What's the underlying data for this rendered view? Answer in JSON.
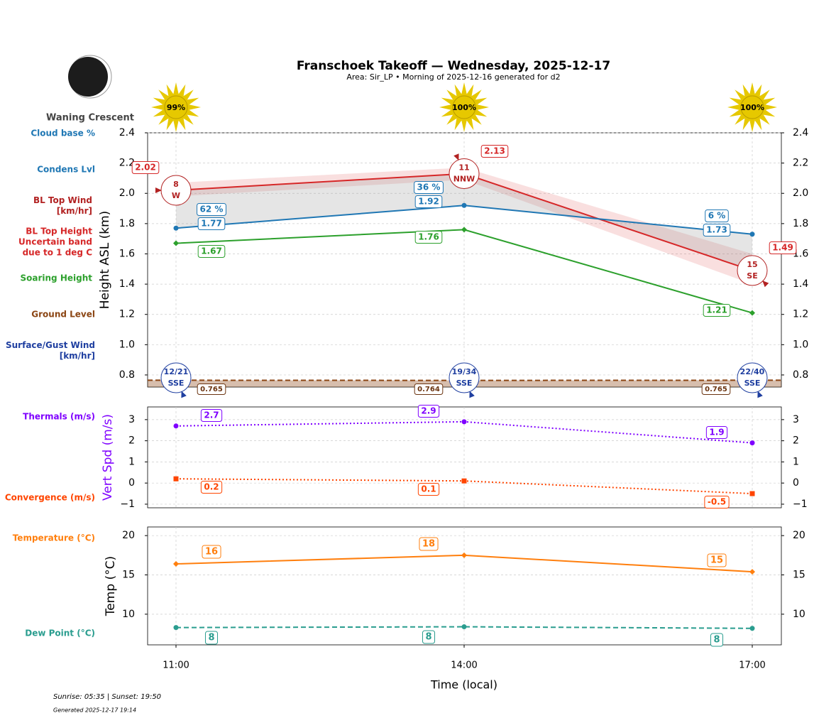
{
  "title": "Franschoek Takeoff — Wednesday, 2025-12-17",
  "subtitle": "Area: Sir_LP • Morning of 2025-12-16 generated for d2",
  "moon_phase": "Waning Crescent",
  "sunshine": {
    "values": [
      99,
      100,
      100
    ],
    "value_labels": [
      "99%",
      "100%",
      "100%"
    ],
    "color": "#e6c800"
  },
  "footer": {
    "sun_times": "Sunrise: 05:35 | Sunset: 19:50",
    "generated": "Generated 2025-12-17 19:14"
  },
  "chart_data": [
    {
      "type": "line",
      "ylabel": "Height ASL (km)",
      "ylim": [
        0.72,
        2.4
      ],
      "yticks": [
        0.8,
        {
          "value": 1,
          "label": "1.0"
        },
        1.2,
        1.4,
        1.6,
        1.8,
        {
          "value": 2,
          "label": "2.0"
        },
        2.2,
        2.4
      ],
      "grid": true,
      "series": [
        {
          "name": "BL Top Height\nUncertain band\ndue to 1 deg C",
          "color": "#d62728",
          "values": [
            2.02,
            2.13,
            1.49
          ],
          "band_low": [
            1.98,
            2.09,
            1.4
          ],
          "band_high": [
            2.07,
            2.17,
            1.6
          ],
          "linestyle": "solid"
        },
        {
          "name": "Condens Lvl",
          "color": "#1f77b4",
          "values": [
            1.77,
            1.92,
            1.73
          ],
          "marker": "circle",
          "linestyle": "solid"
        },
        {
          "name": "Soaring Height",
          "color": "#2ca02c",
          "values": [
            1.67,
            1.76,
            1.21
          ],
          "marker": "diamond",
          "linestyle": "solid"
        },
        {
          "name": "Ground Level",
          "color": "#8b4513",
          "values": [
            0.765,
            0.764,
            0.765
          ],
          "linestyle": "dashed",
          "fill": true
        }
      ],
      "cloud_base": {
        "name": "Cloud base %",
        "color": "#1f77b4",
        "values": [
          62,
          36,
          6
        ],
        "value_labels": [
          "62 %",
          "36 %",
          "6 %"
        ]
      },
      "bl_top_wind": {
        "name": "BL Top Wind\n[km/hr]",
        "color": "#b22222",
        "values": [
          8,
          11,
          15
        ],
        "directions": [
          "W",
          "NNW",
          "SE"
        ]
      },
      "surface_wind": {
        "name": "Surface/Gust Wind\n[km/hr]",
        "color": "#1f3fa0",
        "labels": [
          "12/21",
          "19/34",
          "22/40"
        ],
        "directions": [
          "SSE",
          "SSE",
          "SSE"
        ]
      }
    },
    {
      "type": "line",
      "ylabel": "Vert Spd (m/s)",
      "ylabel_color": "#7f00ff",
      "ylim": [
        -1.17,
        3.6
      ],
      "yticks": [
        {
          "value": -1,
          "label": "−1"
        },
        0,
        1,
        2,
        3
      ],
      "grid": true,
      "series": [
        {
          "name": "Thermals (m/s)",
          "color": "#7f00ff",
          "values": [
            2.7,
            2.9,
            1.9
          ],
          "marker": "circle",
          "linestyle": "dotted"
        },
        {
          "name": "Convergence (m/s)",
          "color": "#ff4500",
          "values": [
            0.2,
            0.1,
            -0.5
          ],
          "marker": "square",
          "linestyle": "dotted"
        }
      ]
    },
    {
      "type": "line",
      "ylabel": "Temp (°C)",
      "xlabel": "Time (local)",
      "categories": [
        "11:00",
        "14:00",
        "17:00"
      ],
      "ylim": [
        6.1,
        21.1
      ],
      "yticks": [
        10,
        15,
        20
      ],
      "grid": true,
      "series": [
        {
          "name": "Temperature (°C)",
          "color": "#ff7f0e",
          "values": [
            16.4,
            17.5,
            15.4
          ],
          "value_labels": [
            "16",
            "18",
            "15"
          ],
          "marker": "diamond",
          "linestyle": "solid"
        },
        {
          "name": "Dew Point (°C)",
          "color": "#2a9d8f",
          "values": [
            8.3,
            8.4,
            8.2
          ],
          "value_labels": [
            "8",
            "8",
            "8"
          ],
          "marker": "circle",
          "linestyle": "dashed"
        }
      ]
    }
  ]
}
